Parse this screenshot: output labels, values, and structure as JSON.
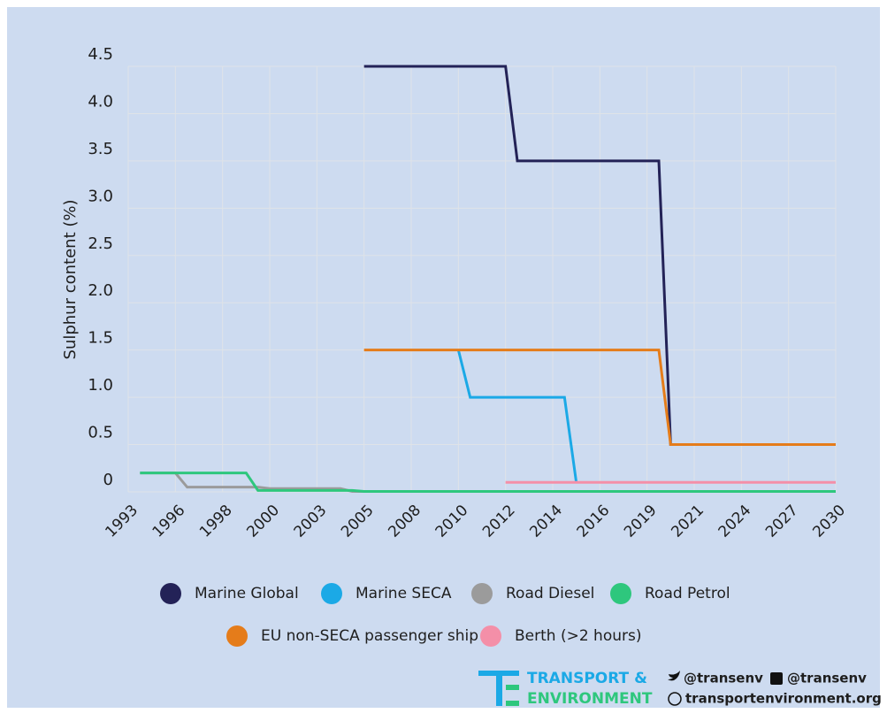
{
  "chart_data": {
    "type": "line",
    "y_label": "Sulphur content (%)",
    "categories": [
      "1993",
      null,
      null,
      null,
      "1996",
      null,
      null,
      null,
      "1998",
      null,
      null,
      null,
      "2000",
      null,
      null,
      null,
      "2003",
      null,
      null,
      null,
      "2005",
      null,
      null,
      null,
      "2008",
      null,
      null,
      null,
      "2010",
      null,
      null,
      null,
      "2012",
      null,
      null,
      null,
      "2014",
      null,
      null,
      null,
      "2016",
      null,
      null,
      null,
      "2019",
      null,
      null,
      null,
      "2021",
      null,
      null,
      null,
      "2024",
      null,
      null,
      null,
      "2027",
      null,
      null,
      null,
      "2030"
    ],
    "ylim": [
      0,
      4.5
    ],
    "yticks": [
      0,
      0.5,
      {
        "value": 1,
        "label": "1.0"
      },
      1.5,
      {
        "value": 2,
        "label": "2.0"
      },
      2.5,
      {
        "value": 3,
        "label": "3.0"
      },
      3.5,
      {
        "value": 4,
        "label": "4.0"
      },
      4.5
    ],
    "grid": true,
    "series": [
      {
        "name": "Marine Global",
        "color": "#232257",
        "values": [
          null,
          null,
          null,
          null,
          null,
          null,
          null,
          null,
          null,
          null,
          null,
          null,
          null,
          null,
          null,
          null,
          null,
          null,
          null,
          null,
          4.5,
          4.5,
          4.5,
          4.5,
          4.5,
          4.5,
          4.5,
          4.5,
          4.5,
          4.5,
          4.5,
          4.5,
          4.5,
          3.5,
          3.5,
          3.5,
          3.5,
          3.5,
          3.5,
          3.5,
          3.5,
          3.5,
          3.5,
          3.5,
          3.5,
          3.5,
          0.5,
          0.5,
          0.5,
          0.5,
          0.5,
          0.5,
          0.5,
          0.5,
          0.5,
          0.5,
          0.5,
          0.5,
          0.5,
          0.5,
          0.5
        ]
      },
      {
        "name": "Marine SECA",
        "color": "#1ba9e6",
        "values": [
          null,
          null,
          null,
          null,
          null,
          null,
          null,
          null,
          null,
          null,
          null,
          null,
          null,
          null,
          null,
          null,
          null,
          null,
          null,
          null,
          null,
          null,
          null,
          null,
          null,
          null,
          null,
          null,
          1.5,
          1,
          1,
          1,
          1,
          1,
          1,
          1,
          1,
          1,
          0.1,
          null,
          null,
          null,
          null,
          null,
          null,
          null,
          null,
          null,
          null,
          null,
          null,
          null,
          null,
          null,
          null,
          null,
          null,
          null,
          null,
          null,
          null
        ]
      },
      {
        "name": "Road Diesel",
        "color": "#9b9b9b",
        "values": [
          null,
          0.2,
          0.2,
          0.2,
          0.2,
          0.05,
          0.05,
          0.05,
          0.05,
          0.05,
          0.05,
          0.05,
          0.035,
          0.035,
          0.035,
          0.035,
          0.035,
          0.035,
          0.035,
          0.005,
          0.005,
          0.005,
          0.005,
          0.005,
          0.005,
          0.005,
          0.005,
          0.005,
          0.005,
          0.005,
          0.005,
          0.005,
          0.005,
          0.005,
          0.005,
          0.005,
          0.005,
          0.005,
          0.005,
          0.005,
          0.005,
          0.005,
          0.005,
          0.005,
          0.005,
          0.005,
          0.005,
          0.005,
          0.005,
          0.005,
          0.005,
          0.005,
          0.005,
          0.005,
          0.005,
          0.005,
          0.005,
          0.005,
          0.005,
          0.005,
          0.005
        ]
      },
      {
        "name": "Road Petrol",
        "color": "#2ec77d",
        "values": [
          null,
          0.2,
          0.2,
          0.2,
          0.2,
          0.2,
          0.2,
          0.2,
          0.2,
          0.2,
          0.2,
          0.015,
          0.015,
          0.015,
          0.015,
          0.015,
          0.015,
          0.015,
          0.015,
          0.015,
          0.005,
          0.005,
          0.005,
          0.005,
          0.005,
          0.005,
          0.005,
          0.005,
          0.005,
          0.005,
          0.005,
          0.005,
          0.005,
          0.005,
          0.005,
          0.005,
          0.005,
          0.005,
          0.005,
          0.005,
          0.005,
          0.005,
          0.005,
          0.005,
          0.005,
          0.005,
          0.005,
          0.005,
          0.005,
          0.005,
          0.005,
          0.005,
          0.005,
          0.005,
          0.005,
          0.005,
          0.005,
          0.005,
          0.005,
          0.005,
          0.005
        ]
      },
      {
        "name": "EU non-SECA passenger ship",
        "color": "#e57c1a",
        "values": [
          null,
          null,
          null,
          null,
          null,
          null,
          null,
          null,
          null,
          null,
          null,
          null,
          null,
          null,
          null,
          null,
          null,
          null,
          null,
          null,
          1.5,
          1.5,
          1.5,
          1.5,
          1.5,
          1.5,
          1.5,
          1.5,
          1.5,
          1.5,
          1.5,
          1.5,
          1.5,
          1.5,
          1.5,
          1.5,
          1.5,
          1.5,
          1.5,
          1.5,
          1.5,
          1.5,
          1.5,
          1.5,
          1.5,
          1.5,
          0.5,
          0.5,
          0.5,
          0.5,
          0.5,
          0.5,
          0.5,
          0.5,
          0.5,
          0.5,
          0.5,
          0.5,
          0.5,
          0.5,
          0.5
        ]
      },
      {
        "name": "Berth (>2 hours)",
        "color": "#f48fa8",
        "values": [
          null,
          null,
          null,
          null,
          null,
          null,
          null,
          null,
          null,
          null,
          null,
          null,
          null,
          null,
          null,
          null,
          null,
          null,
          null,
          null,
          null,
          null,
          null,
          null,
          null,
          null,
          null,
          null,
          null,
          null,
          null,
          null,
          0.1,
          0.1,
          0.1,
          0.1,
          0.1,
          0.1,
          0.1,
          0.1,
          0.1,
          0.1,
          0.1,
          0.1,
          0.1,
          0.1,
          0.1,
          0.1,
          0.1,
          0.1,
          0.1,
          0.1,
          0.1,
          0.1,
          0.1,
          0.1,
          0.1,
          0.1,
          0.1,
          0.1,
          0.1
        ]
      }
    ]
  },
  "footer": {
    "brand_line1": "TRANSPORT &",
    "brand_line2": "ENVIRONMENT",
    "twitter": "@transenv",
    "facebook": "@transenv",
    "website": "transportenvironment.org"
  }
}
